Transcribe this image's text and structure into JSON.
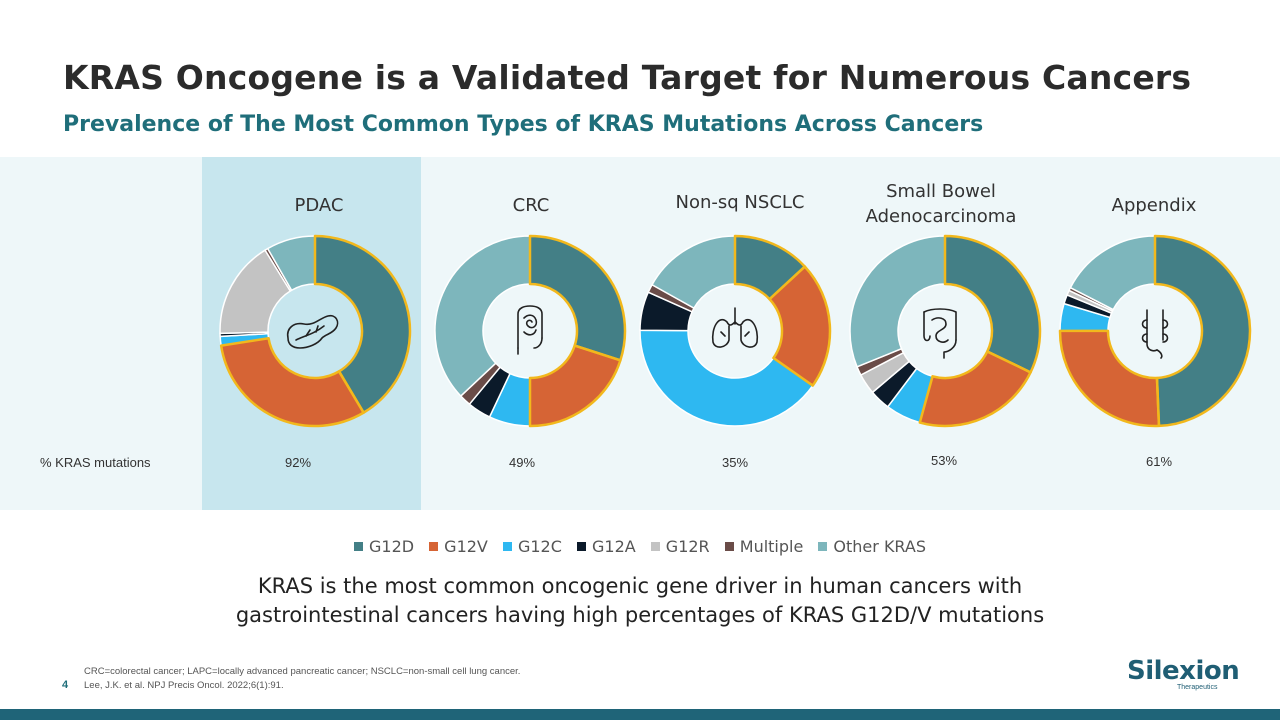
{
  "slide": {
    "title": "KRAS Oncogene is a Validated Target for Numerous Cancers",
    "subtitle": "Prevalence of The Most Common Types of KRAS Mutations Across Cancers",
    "row_label": "% KRAS mutations",
    "takeaway_line1": "KRAS is the most common oncogenic gene driver in human cancers with",
    "takeaway_line2": "gastrointestinal cancers having high percentages of KRAS G12D/V mutations",
    "footnote_line1": "CRC=colorectal cancer; LAPC=locally advanced pancreatic cancer; NSCLC=non-small cell lung cancer.",
    "footnote_line2": "Lee, J.K. et al. NPJ Precis Oncol. 2022;6(1):91.",
    "page_number": "4",
    "logo_text": "Silexion",
    "logo_subtext": "Therapeutics"
  },
  "colors": {
    "accent": "#1f6e7a",
    "highlight_band": "#c7e6ee",
    "background_band": "#eef7f9",
    "emphasis_outline": "#f2b81c"
  },
  "chart_data": {
    "type": "pie",
    "variant": "donut",
    "categories": [
      "G12D",
      "G12V",
      "G12C",
      "G12A",
      "G12R",
      "Multiple",
      "Other KRAS"
    ],
    "category_colors": [
      "#437f86",
      "#d66435",
      "#2eb8f1",
      "#0b1a2a",
      "#c3c3c3",
      "#6a4c48",
      "#7db6bc"
    ],
    "emphasized_categories": [
      "G12D",
      "G12V"
    ],
    "legend_position": "bottom",
    "series": [
      {
        "name": "PDAC",
        "label_line1": "PDAC",
        "label_line2": "",
        "kras_pct": "92%",
        "icon": "pancreas-icon",
        "values": [
          40,
          30,
          1.5,
          0.5,
          16,
          0.5,
          8
        ]
      },
      {
        "name": "CRC",
        "label_line1": "CRC",
        "label_line2": "",
        "kras_pct": "49%",
        "icon": "colon-icon",
        "values": [
          30,
          20,
          7,
          4,
          0,
          2,
          37
        ]
      },
      {
        "name": "Non-sq NSCLC",
        "label_line1": "Non-sq NSCLC",
        "label_line2": "",
        "kras_pct": "35%",
        "icon": "lungs-icon",
        "values": [
          14,
          23,
          43,
          7,
          0,
          1.5,
          18
        ]
      },
      {
        "name": "Small Bowel Adenocarcinoma",
        "label_line1": "Small Bowel",
        "label_line2": "Adenocarcinoma",
        "kras_pct": "53%",
        "icon": "small-bowel-icon",
        "values": [
          32,
          22,
          6,
          3.5,
          3.5,
          1.5,
          31
        ]
      },
      {
        "name": "Appendix",
        "label_line1": "Appendix",
        "label_line2": "",
        "kras_pct": "61%",
        "icon": "appendix-icon",
        "values": [
          48,
          25,
          4.5,
          1.5,
          0.8,
          0.5,
          17
        ]
      }
    ]
  }
}
